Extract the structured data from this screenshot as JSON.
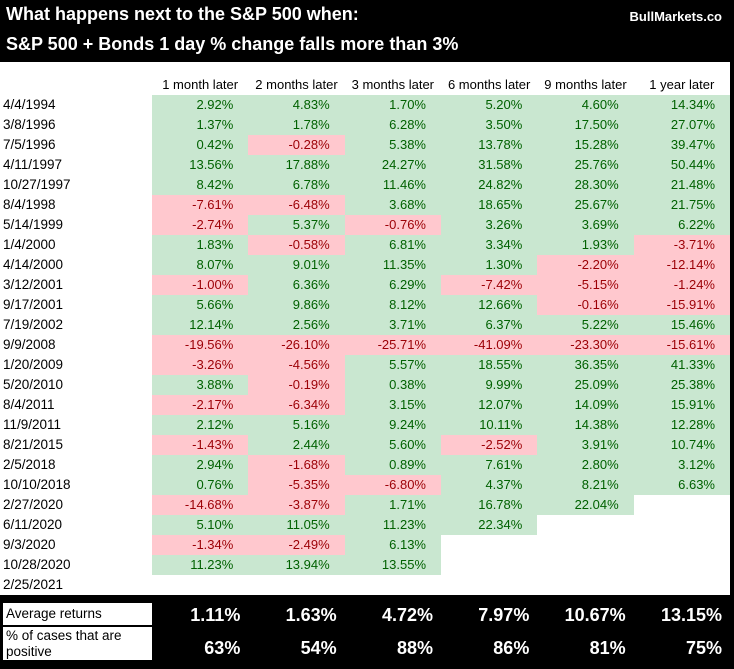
{
  "header": {
    "title_line1": "What happens next to the S&P 500 when:",
    "title_line2": "S&P 500 + Bonds 1 day % change falls more than 3%",
    "brand": "BullMarkets.co"
  },
  "colors": {
    "header_bg": "#000000",
    "header_text": "#ffffff",
    "positive_bg": "#c9e7d0",
    "positive_text": "#006100",
    "negative_bg": "#ffc8ce",
    "negative_text": "#9c0006",
    "summary_bg": "#000000",
    "summary_text": "#ffffff"
  },
  "chart_data": {
    "type": "table",
    "title": "What happens next to the S&P 500 when: S&P 500 + Bonds 1 day % change falls more than 3%",
    "value_format": "percent",
    "columns": [
      "1 month later",
      "2 months later",
      "3 months later",
      "6 months later",
      "9 months later",
      "1 year later"
    ],
    "rows": [
      {
        "date": "4/4/1994",
        "values": [
          2.92,
          4.83,
          1.7,
          5.2,
          4.6,
          14.34
        ]
      },
      {
        "date": "3/8/1996",
        "values": [
          1.37,
          1.78,
          6.28,
          3.5,
          17.5,
          27.07
        ]
      },
      {
        "date": "7/5/1996",
        "values": [
          0.42,
          -0.28,
          5.38,
          13.78,
          15.28,
          39.47
        ]
      },
      {
        "date": "4/11/1997",
        "values": [
          13.56,
          17.88,
          24.27,
          31.58,
          25.76,
          50.44
        ]
      },
      {
        "date": "10/27/1997",
        "values": [
          8.42,
          6.78,
          11.46,
          24.82,
          28.3,
          21.48
        ]
      },
      {
        "date": "8/4/1998",
        "values": [
          -7.61,
          -6.48,
          3.68,
          18.65,
          25.67,
          21.75
        ]
      },
      {
        "date": "5/14/1999",
        "values": [
          -2.74,
          5.37,
          -0.76,
          3.26,
          3.69,
          6.22
        ]
      },
      {
        "date": "1/4/2000",
        "values": [
          1.83,
          -0.58,
          6.81,
          3.34,
          1.93,
          -3.71
        ]
      },
      {
        "date": "4/14/2000",
        "values": [
          8.07,
          9.01,
          11.35,
          1.3,
          -2.2,
          -12.14
        ]
      },
      {
        "date": "3/12/2001",
        "values": [
          -1.0,
          6.36,
          6.29,
          -7.42,
          -5.15,
          -1.24
        ]
      },
      {
        "date": "9/17/2001",
        "values": [
          5.66,
          9.86,
          8.12,
          12.66,
          -0.16,
          -15.91
        ]
      },
      {
        "date": "7/19/2002",
        "values": [
          12.14,
          2.56,
          3.71,
          6.37,
          5.22,
          15.46
        ]
      },
      {
        "date": "9/9/2008",
        "values": [
          -19.56,
          -26.1,
          -25.71,
          -41.09,
          -23.3,
          -15.61
        ]
      },
      {
        "date": "1/20/2009",
        "values": [
          -3.26,
          -4.56,
          5.57,
          18.55,
          36.35,
          41.33
        ]
      },
      {
        "date": "5/20/2010",
        "values": [
          3.88,
          -0.19,
          0.38,
          9.99,
          25.09,
          25.38
        ]
      },
      {
        "date": "8/4/2011",
        "values": [
          -2.17,
          -6.34,
          3.15,
          12.07,
          14.09,
          15.91
        ]
      },
      {
        "date": "11/9/2011",
        "values": [
          2.12,
          5.16,
          9.24,
          10.11,
          14.38,
          12.28
        ]
      },
      {
        "date": "8/21/2015",
        "values": [
          -1.43,
          2.44,
          5.6,
          -2.52,
          3.91,
          10.74
        ]
      },
      {
        "date": "2/5/2018",
        "values": [
          2.94,
          -1.68,
          0.89,
          7.61,
          2.8,
          3.12
        ]
      },
      {
        "date": "10/10/2018",
        "values": [
          0.76,
          -5.35,
          -6.8,
          4.37,
          8.21,
          6.63
        ]
      },
      {
        "date": "2/27/2020",
        "values": [
          -14.68,
          -3.87,
          1.71,
          16.78,
          22.04,
          null
        ]
      },
      {
        "date": "6/11/2020",
        "values": [
          5.1,
          11.05,
          11.23,
          22.34,
          null,
          null
        ]
      },
      {
        "date": "9/3/2020",
        "values": [
          -1.34,
          -2.49,
          6.13,
          null,
          null,
          null
        ]
      },
      {
        "date": "10/28/2020",
        "values": [
          11.23,
          13.94,
          13.55,
          null,
          null,
          null
        ]
      },
      {
        "date": "2/25/2021",
        "values": [
          null,
          null,
          null,
          null,
          null,
          null
        ]
      }
    ],
    "summary": {
      "average": {
        "label": "Average returns",
        "values": [
          1.11,
          1.63,
          4.72,
          7.97,
          10.67,
          13.15
        ]
      },
      "percent_positive": {
        "label": "% of cases that are positive",
        "values": [
          63,
          54,
          88,
          86,
          81,
          75
        ]
      }
    }
  }
}
